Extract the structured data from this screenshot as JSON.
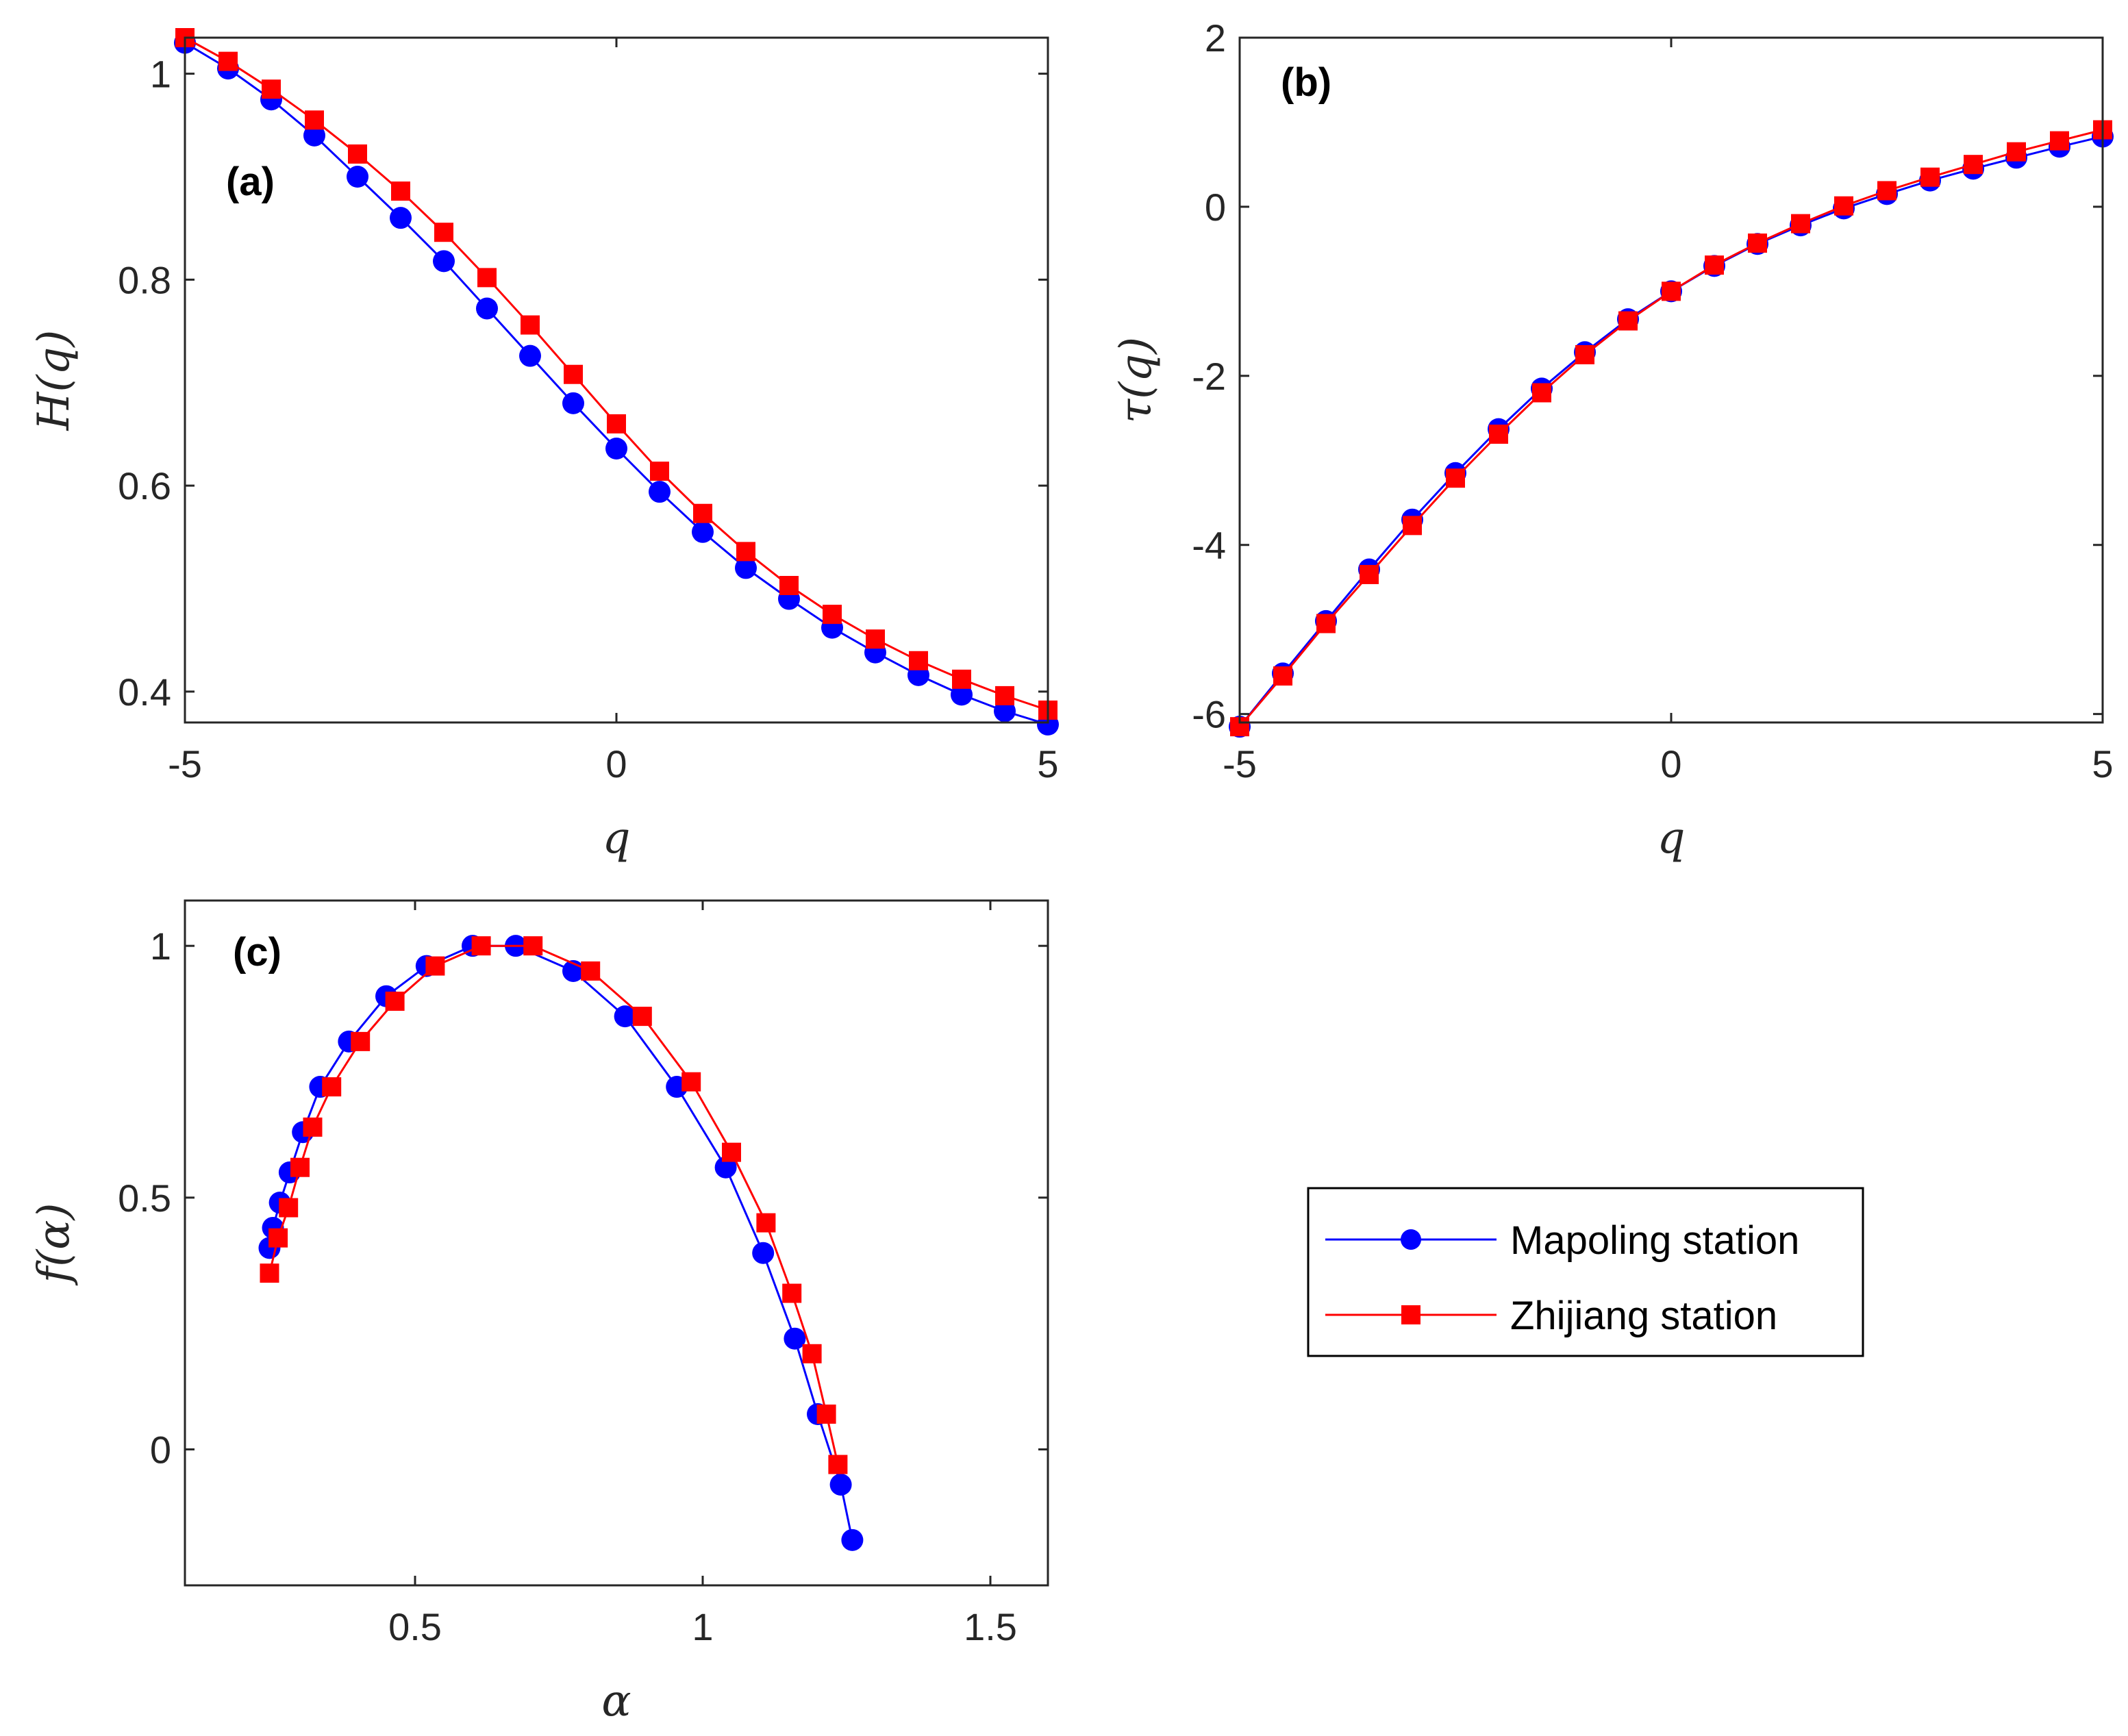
{
  "colors": {
    "series1": "#0000ff",
    "series2": "#ff0000",
    "axes": "#262626"
  },
  "legend": {
    "items": [
      {
        "label": "Mapoling station",
        "marker": "circle",
        "color": "#0000ff"
      },
      {
        "label": "Zhijiang station",
        "marker": "square",
        "color": "#ff0000"
      }
    ]
  },
  "chart_data": [
    {
      "id": "a",
      "type": "line",
      "panel_label": "(a)",
      "xlabel": "q",
      "ylabel": "H(q)",
      "xlim": [
        -5,
        5
      ],
      "ylim": [
        0.37,
        1.035
      ],
      "xticks": [
        -5,
        0,
        5
      ],
      "xtick_labels": [
        "-5",
        "0",
        "5"
      ],
      "yticks": [
        0.4,
        0.6,
        0.8,
        1.0
      ],
      "ytick_labels": [
        "0.4",
        "0.6",
        "0.8",
        "1"
      ],
      "series": [
        {
          "name": "Mapoling station",
          "marker": "circle",
          "color": "#0000ff",
          "x": [
            -5,
            -4.5,
            -4,
            -3.5,
            -3,
            -2.5,
            -2,
            -1.5,
            -1,
            -0.5,
            0,
            0.5,
            1,
            1.5,
            2,
            2.5,
            3,
            3.5,
            4,
            4.5,
            5
          ],
          "y": [
            1.03,
            1.005,
            0.975,
            0.94,
            0.9,
            0.86,
            0.818,
            0.772,
            0.726,
            0.68,
            0.636,
            0.594,
            0.555,
            0.52,
            0.49,
            0.462,
            0.438,
            0.416,
            0.397,
            0.381,
            0.368
          ]
        },
        {
          "name": "Zhijiang station",
          "marker": "square",
          "color": "#ff0000",
          "x": [
            -5,
            -4.5,
            -4,
            -3.5,
            -3,
            -2.5,
            -2,
            -1.5,
            -1,
            -0.5,
            0,
            0.5,
            1,
            1.5,
            2,
            2.5,
            3,
            3.5,
            4,
            4.5,
            5
          ],
          "y": [
            1.035,
            1.012,
            0.985,
            0.955,
            0.922,
            0.886,
            0.846,
            0.802,
            0.756,
            0.708,
            0.66,
            0.614,
            0.573,
            0.536,
            0.503,
            0.475,
            0.451,
            0.43,
            0.412,
            0.396,
            0.382
          ]
        }
      ]
    },
    {
      "id": "b",
      "type": "line",
      "panel_label": "(b)",
      "xlabel": "q",
      "ylabel": "τ(q)",
      "xlim": [
        -5,
        5
      ],
      "ylim": [
        -6.1,
        2
      ],
      "xticks": [
        -5,
        0,
        5
      ],
      "xtick_labels": [
        "-5",
        "0",
        "5"
      ],
      "yticks": [
        -6,
        -4,
        -2,
        0,
        2
      ],
      "ytick_labels": [
        "-6",
        "-4",
        "-2",
        "0",
        "2"
      ],
      "series": [
        {
          "name": "Mapoling station",
          "marker": "circle",
          "color": "#0000ff",
          "x": [
            -5,
            -4.5,
            -4,
            -3.5,
            -3,
            -2.5,
            -2,
            -1.5,
            -1,
            -0.5,
            0,
            0.5,
            1,
            1.5,
            2,
            2.5,
            3,
            3.5,
            4,
            4.5,
            5
          ],
          "y": [
            -6.15,
            -5.52,
            -4.9,
            -4.29,
            -3.7,
            -3.15,
            -2.63,
            -2.15,
            -1.72,
            -1.33,
            -1.0,
            -0.7,
            -0.44,
            -0.22,
            -0.02,
            0.15,
            0.31,
            0.45,
            0.58,
            0.71,
            0.83
          ]
        },
        {
          "name": "Zhijiang station",
          "marker": "square",
          "color": "#ff0000",
          "x": [
            -5,
            -4.5,
            -4,
            -3.5,
            -3,
            -2.5,
            -2,
            -1.5,
            -1,
            -0.5,
            0,
            0.5,
            1,
            1.5,
            2,
            2.5,
            3,
            3.5,
            4,
            4.5,
            5
          ],
          "y": [
            -6.15,
            -5.55,
            -4.93,
            -4.35,
            -3.77,
            -3.21,
            -2.69,
            -2.2,
            -1.75,
            -1.35,
            -1.0,
            -0.69,
            -0.43,
            -0.2,
            0.01,
            0.19,
            0.35,
            0.5,
            0.65,
            0.78,
            0.91
          ]
        }
      ]
    },
    {
      "id": "c",
      "type": "line",
      "panel_label": "(c)",
      "xlabel": "α",
      "ylabel": "f(α)",
      "xlim": [
        0.1,
        1.6
      ],
      "ylim": [
        -0.27,
        1.09
      ],
      "xticks": [
        0.5,
        1,
        1.5
      ],
      "xtick_labels": [
        "0.5",
        "1",
        "1.5"
      ],
      "yticks": [
        0,
        0.5,
        1
      ],
      "ytick_labels": [
        "0",
        "0.5",
        "1"
      ],
      "series": [
        {
          "name": "Mapoling station",
          "marker": "circle",
          "color": "#0000ff",
          "x": [
            0.247,
            0.253,
            0.265,
            0.282,
            0.305,
            0.335,
            0.385,
            0.45,
            0.52,
            0.6,
            0.675,
            0.775,
            0.865,
            0.955,
            1.04,
            1.105,
            1.16,
            1.2,
            1.24,
            1.26
          ],
          "y": [
            0.4,
            0.44,
            0.49,
            0.55,
            0.63,
            0.72,
            0.81,
            0.9,
            0.96,
            1.0,
            1.0,
            0.95,
            0.86,
            0.72,
            0.56,
            0.39,
            0.22,
            0.07,
            -0.07,
            -0.18
          ]
        },
        {
          "name": "Zhijiang station",
          "marker": "square",
          "color": "#ff0000",
          "x": [
            0.247,
            0.262,
            0.28,
            0.3,
            0.322,
            0.355,
            0.405,
            0.465,
            0.535,
            0.615,
            0.705,
            0.805,
            0.895,
            0.98,
            1.05,
            1.11,
            1.155,
            1.19,
            1.215,
            1.235
          ],
          "y": [
            0.35,
            0.42,
            0.48,
            0.56,
            0.64,
            0.72,
            0.81,
            0.89,
            0.96,
            1.0,
            1.0,
            0.95,
            0.86,
            0.73,
            0.59,
            0.45,
            0.31,
            0.19,
            0.07,
            -0.03
          ]
        }
      ]
    }
  ]
}
